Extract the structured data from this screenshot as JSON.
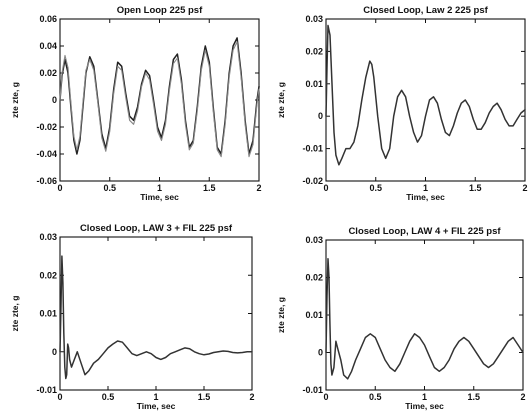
{
  "chart_data": [
    {
      "type": "line",
      "title": "Open Loop 225 psf",
      "xlabel": "Time, sec",
      "ylabel": "zte zte, g",
      "xlim": [
        0,
        2
      ],
      "ylim": [
        -0.06,
        0.06
      ],
      "xticks": [
        "0",
        "0.5",
        "1",
        "1.5",
        "2"
      ],
      "yticks": [
        "-0.06",
        "-0.04",
        "-0.02",
        "0",
        "0.02",
        "0.04",
        "0.06"
      ],
      "series": [
        {
          "color": "#222222",
          "x": [
            0,
            0.02,
            0.05,
            0.08,
            0.11,
            0.14,
            0.17,
            0.2,
            0.23,
            0.26,
            0.3,
            0.34,
            0.38,
            0.42,
            0.46,
            0.5,
            0.54,
            0.58,
            0.62,
            0.66,
            0.7,
            0.74,
            0.78,
            0.82,
            0.86,
            0.9,
            0.94,
            0.98,
            1.02,
            1.06,
            1.1,
            1.14,
            1.18,
            1.22,
            1.26,
            1.3,
            1.34,
            1.38,
            1.42,
            1.46,
            1.5,
            1.54,
            1.58,
            1.62,
            1.66,
            1.7,
            1.74,
            1.78,
            1.82,
            1.86,
            1.9,
            1.94,
            1.98,
            2.0
          ],
          "y": [
            0.0,
            0.018,
            0.03,
            0.02,
            -0.005,
            -0.03,
            -0.04,
            -0.03,
            -0.005,
            0.02,
            0.032,
            0.025,
            0.0,
            -0.025,
            -0.036,
            -0.02,
            0.008,
            0.028,
            0.025,
            0.005,
            -0.012,
            -0.015,
            -0.005,
            0.012,
            0.022,
            0.018,
            0.0,
            -0.02,
            -0.028,
            -0.015,
            0.01,
            0.03,
            0.034,
            0.015,
            -0.015,
            -0.035,
            -0.03,
            -0.005,
            0.025,
            0.04,
            0.028,
            -0.005,
            -0.035,
            -0.04,
            -0.015,
            0.02,
            0.04,
            0.046,
            0.02,
            -0.015,
            -0.04,
            -0.03,
            0.0,
            0.01
          ]
        },
        {
          "color": "#888888",
          "x": [
            0,
            0.02,
            0.05,
            0.08,
            0.11,
            0.14,
            0.17,
            0.2,
            0.23,
            0.26,
            0.3,
            0.34,
            0.38,
            0.42,
            0.46,
            0.5,
            0.54,
            0.58,
            0.62,
            0.66,
            0.7,
            0.74,
            0.78,
            0.82,
            0.86,
            0.9,
            0.94,
            0.98,
            1.02,
            1.06,
            1.1,
            1.14,
            1.18,
            1.22,
            1.26,
            1.3,
            1.34,
            1.38,
            1.42,
            1.46,
            1.5,
            1.54,
            1.58,
            1.62,
            1.66,
            1.7,
            1.74,
            1.78,
            1.82,
            1.86,
            1.9,
            1.94,
            1.98,
            2.0
          ],
          "y": [
            0.0,
            0.02,
            0.033,
            0.024,
            -0.002,
            -0.027,
            -0.037,
            -0.027,
            -0.002,
            0.022,
            0.03,
            0.022,
            -0.002,
            -0.028,
            -0.038,
            -0.023,
            0.005,
            0.025,
            0.022,
            0.002,
            -0.015,
            -0.018,
            -0.008,
            0.01,
            0.02,
            0.015,
            -0.003,
            -0.023,
            -0.03,
            -0.018,
            0.007,
            0.027,
            0.031,
            0.012,
            -0.018,
            -0.037,
            -0.032,
            -0.008,
            0.022,
            0.037,
            0.025,
            -0.008,
            -0.037,
            -0.042,
            -0.018,
            0.017,
            0.037,
            0.043,
            0.017,
            -0.018,
            -0.042,
            -0.033,
            -0.003,
            0.008
          ]
        }
      ]
    },
    {
      "type": "line",
      "title": "Closed Loop, Law 2 225 psf",
      "xlabel": "Time, sec",
      "ylabel": "zte zte, g",
      "xlim": [
        0,
        2
      ],
      "ylim": [
        -0.02,
        0.03
      ],
      "xticks": [
        "0",
        "0.5",
        "1",
        "1.5",
        "2"
      ],
      "yticks": [
        "-0.02",
        "-0.01",
        "0",
        "0.01",
        "0.02",
        "0.03"
      ],
      "series": [
        {
          "color": "#333333",
          "x": [
            0,
            0.01,
            0.02,
            0.04,
            0.06,
            0.08,
            0.1,
            0.13,
            0.16,
            0.2,
            0.24,
            0.28,
            0.32,
            0.36,
            0.4,
            0.44,
            0.46,
            0.48,
            0.52,
            0.56,
            0.6,
            0.64,
            0.68,
            0.72,
            0.76,
            0.8,
            0.84,
            0.88,
            0.92,
            0.96,
            1.0,
            1.04,
            1.08,
            1.12,
            1.16,
            1.2,
            1.24,
            1.28,
            1.32,
            1.36,
            1.4,
            1.44,
            1.48,
            1.52,
            1.56,
            1.6,
            1.64,
            1.68,
            1.72,
            1.76,
            1.8,
            1.84,
            1.88,
            1.92,
            1.96,
            2.0
          ],
          "y": [
            0.0,
            0.015,
            0.028,
            0.025,
            0.01,
            -0.005,
            -0.012,
            -0.015,
            -0.013,
            -0.01,
            -0.01,
            -0.008,
            -0.003,
            0.005,
            0.012,
            0.017,
            0.016,
            0.012,
            0.0,
            -0.01,
            -0.013,
            -0.01,
            0.0,
            0.006,
            0.008,
            0.006,
            0.0,
            -0.005,
            -0.008,
            -0.006,
            0.0,
            0.005,
            0.006,
            0.004,
            -0.001,
            -0.005,
            -0.006,
            -0.003,
            0.001,
            0.004,
            0.005,
            0.003,
            -0.001,
            -0.004,
            -0.004,
            -0.002,
            0.001,
            0.003,
            0.004,
            0.002,
            -0.001,
            -0.003,
            -0.003,
            -0.001,
            0.001,
            0.002
          ]
        }
      ]
    },
    {
      "type": "line",
      "title": "Closed Loop, LAW 3 + FIL 225 psf",
      "xlabel": "Time, sec",
      "ylabel": "zte zte, g",
      "xlim": [
        0,
        2
      ],
      "ylim": [
        -0.01,
        0.03
      ],
      "xticks": [
        "0",
        "0.5",
        "1",
        "1.5",
        "2"
      ],
      "yticks": [
        "-0.01",
        "0",
        "0.01",
        "0.02",
        "0.03"
      ],
      "series": [
        {
          "color": "#333333",
          "x": [
            0,
            0.01,
            0.02,
            0.03,
            0.04,
            0.05,
            0.06,
            0.07,
            0.08,
            0.09,
            0.1,
            0.12,
            0.15,
            0.18,
            0.22,
            0.26,
            0.3,
            0.35,
            0.4,
            0.45,
            0.5,
            0.55,
            0.6,
            0.65,
            0.7,
            0.75,
            0.8,
            0.85,
            0.9,
            0.95,
            1.0,
            1.05,
            1.1,
            1.15,
            1.2,
            1.25,
            1.3,
            1.35,
            1.4,
            1.45,
            1.5,
            1.55,
            1.6,
            1.65,
            1.7,
            1.75,
            1.8,
            1.85,
            1.9,
            1.95,
            2.0
          ],
          "y": [
            0.0,
            0.012,
            0.025,
            0.018,
            0.005,
            -0.004,
            -0.007,
            -0.006,
            0.002,
            0.001,
            -0.002,
            -0.004,
            -0.002,
            0.0,
            -0.003,
            -0.006,
            -0.005,
            -0.003,
            -0.002,
            -0.0005,
            0.001,
            0.002,
            0.0028,
            0.0025,
            0.001,
            -0.0005,
            -0.001,
            -0.0005,
            0.0,
            -0.0005,
            -0.0015,
            -0.002,
            -0.0015,
            -0.0005,
            0.0,
            0.0005,
            0.001,
            0.0008,
            0.0,
            -0.0005,
            -0.0008,
            -0.0006,
            -0.0002,
            0.0,
            0.0002,
            0.0001,
            -0.0002,
            -0.0003,
            -0.0002,
            0.0,
            0.0
          ]
        }
      ]
    },
    {
      "type": "line",
      "title": "Closed Loop, LAW 4 + FIL 225 psf",
      "xlabel": "Time, sec",
      "ylabel": "zte zte, g",
      "xlim": [
        0,
        2
      ],
      "ylim": [
        -0.01,
        0.03
      ],
      "xticks": [
        "0",
        "0.5",
        "1",
        "1.5",
        "2"
      ],
      "yticks": [
        "-0.01",
        "0",
        "0.01",
        "0.02",
        "0.03"
      ],
      "series": [
        {
          "color": "#333333",
          "x": [
            0,
            0.01,
            0.02,
            0.03,
            0.04,
            0.05,
            0.06,
            0.08,
            0.1,
            0.12,
            0.15,
            0.18,
            0.22,
            0.26,
            0.3,
            0.35,
            0.4,
            0.45,
            0.5,
            0.55,
            0.6,
            0.65,
            0.7,
            0.75,
            0.8,
            0.85,
            0.9,
            0.95,
            1.0,
            1.05,
            1.1,
            1.15,
            1.2,
            1.25,
            1.3,
            1.35,
            1.4,
            1.45,
            1.5,
            1.55,
            1.6,
            1.65,
            1.7,
            1.75,
            1.8,
            1.85,
            1.9,
            1.95,
            2.0
          ],
          "y": [
            0.0,
            0.015,
            0.025,
            0.02,
            0.008,
            -0.003,
            -0.006,
            -0.004,
            0.003,
            0.001,
            -0.002,
            -0.006,
            -0.007,
            -0.005,
            -0.002,
            0.001,
            0.004,
            0.005,
            0.004,
            0.001,
            -0.002,
            -0.004,
            -0.005,
            -0.003,
            0.0,
            0.003,
            0.005,
            0.004,
            0.002,
            -0.001,
            -0.004,
            -0.005,
            -0.004,
            -0.002,
            0.001,
            0.003,
            0.004,
            0.003,
            0.001,
            -0.001,
            -0.003,
            -0.004,
            -0.003,
            -0.001,
            0.001,
            0.003,
            0.004,
            0.002,
            0.0
          ]
        }
      ]
    }
  ]
}
